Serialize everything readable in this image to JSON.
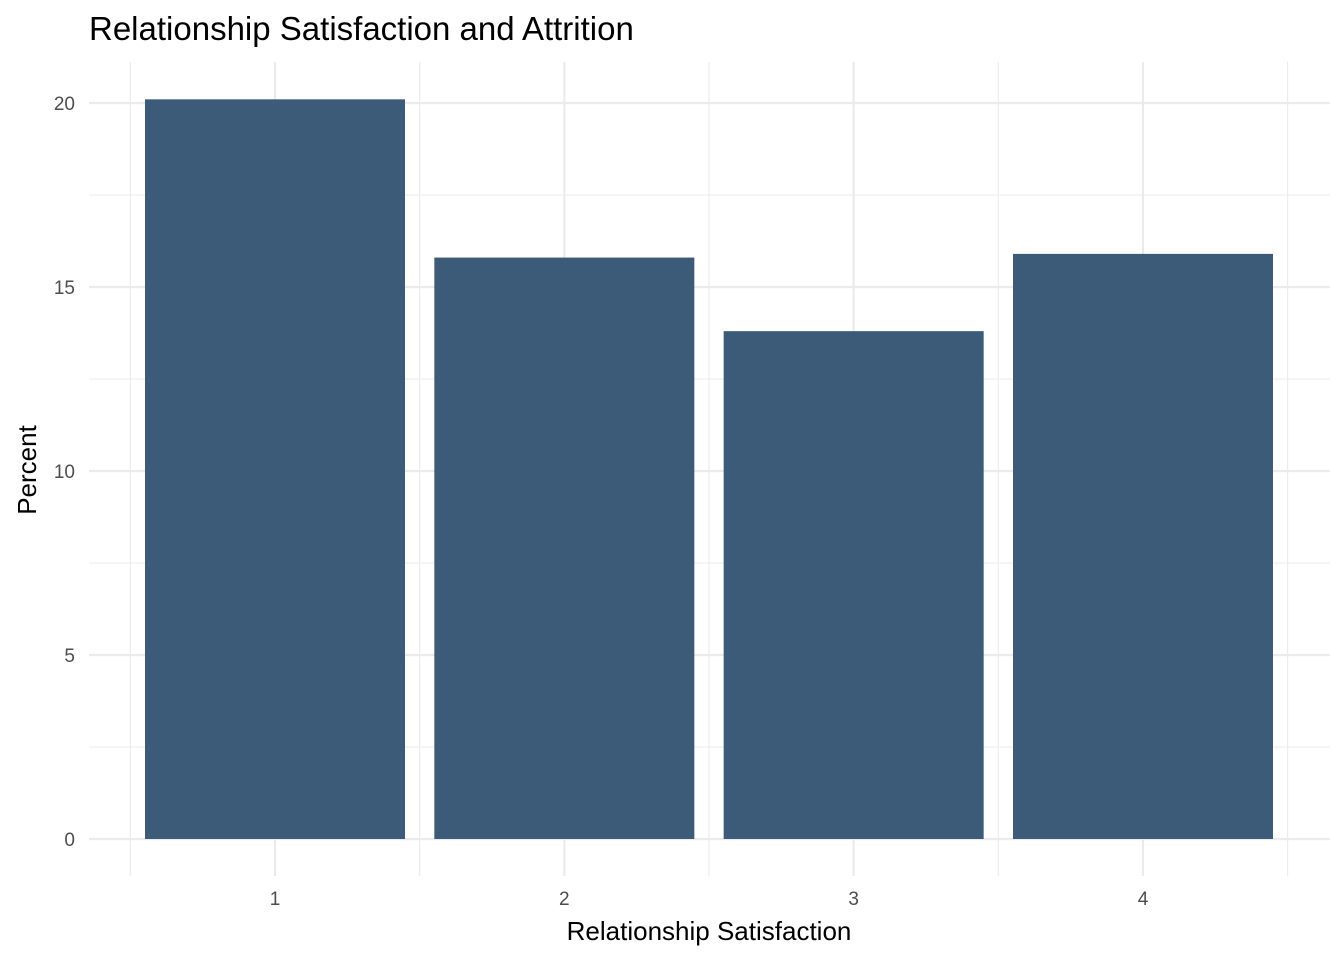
{
  "chart_data": {
    "type": "bar",
    "title": "Relationship Satisfaction and Attrition",
    "xlabel": "Relationship Satisfaction",
    "ylabel": "Percent",
    "categories": [
      "1",
      "2",
      "3",
      "4"
    ],
    "values": [
      20.1,
      15.8,
      13.8,
      15.9
    ],
    "ylim": [
      0,
      21.7
    ],
    "yticks": [
      "0",
      "5",
      "10",
      "15",
      "20"
    ],
    "grid": true,
    "legend": "none",
    "bar_color": "#3b5b78",
    "grid_color": "#ebebeb"
  }
}
